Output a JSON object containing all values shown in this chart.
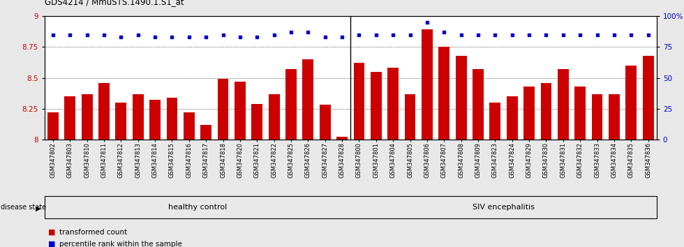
{
  "title": "GDS4214 / MmuSTS.1490.1.S1_at",
  "samples": [
    "GSM347802",
    "GSM347803",
    "GSM347810",
    "GSM347811",
    "GSM347812",
    "GSM347813",
    "GSM347814",
    "GSM347815",
    "GSM347816",
    "GSM347817",
    "GSM347818",
    "GSM347820",
    "GSM347821",
    "GSM347822",
    "GSM347825",
    "GSM347826",
    "GSM347827",
    "GSM347828",
    "GSM347800",
    "GSM347801",
    "GSM347804",
    "GSM347805",
    "GSM347806",
    "GSM347807",
    "GSM347808",
    "GSM347809",
    "GSM347823",
    "GSM347824",
    "GSM347829",
    "GSM347830",
    "GSM347831",
    "GSM347832",
    "GSM347833",
    "GSM347834",
    "GSM347835",
    "GSM347836"
  ],
  "bar_values": [
    8.22,
    8.35,
    8.37,
    8.46,
    8.3,
    8.37,
    8.32,
    8.34,
    8.22,
    8.12,
    8.49,
    8.47,
    8.29,
    8.37,
    8.57,
    8.65,
    8.28,
    8.02,
    8.62,
    8.55,
    8.58,
    8.37,
    8.89,
    8.75,
    8.68,
    8.57,
    8.3,
    8.35,
    8.43,
    8.46,
    8.57,
    8.43,
    8.37,
    8.37,
    8.6,
    8.68
  ],
  "percentile_values": [
    85,
    85,
    85,
    85,
    83,
    85,
    83,
    83,
    83,
    83,
    85,
    83,
    83,
    85,
    87,
    87,
    83,
    83,
    85,
    85,
    85,
    85,
    95,
    87,
    85,
    85,
    85,
    85,
    85,
    85,
    85,
    85,
    85,
    85,
    85,
    85
  ],
  "healthy_count": 18,
  "siv_count": 18,
  "bar_color": "#cc0000",
  "dot_color": "#0000cc",
  "healthy_bg": "#ccffcc",
  "siv_bg": "#55cc55",
  "ylim_left": [
    8.0,
    9.0
  ],
  "ylim_right": [
    0,
    100
  ],
  "yticks_left": [
    8.0,
    8.25,
    8.5,
    8.75,
    9.0
  ],
  "ytick_labels_left": [
    "8",
    "8.25",
    "8.5",
    "8.75",
    "9"
  ],
  "yticks_right": [
    0,
    25,
    50,
    75,
    100
  ],
  "ytick_labels_right": [
    "0",
    "25",
    "50",
    "75",
    "100%"
  ],
  "background_color": "#e8e8e8",
  "legend_items": [
    {
      "label": "transformed count",
      "color": "#cc0000"
    },
    {
      "label": "percentile rank within the sample",
      "color": "#0000cc"
    }
  ]
}
